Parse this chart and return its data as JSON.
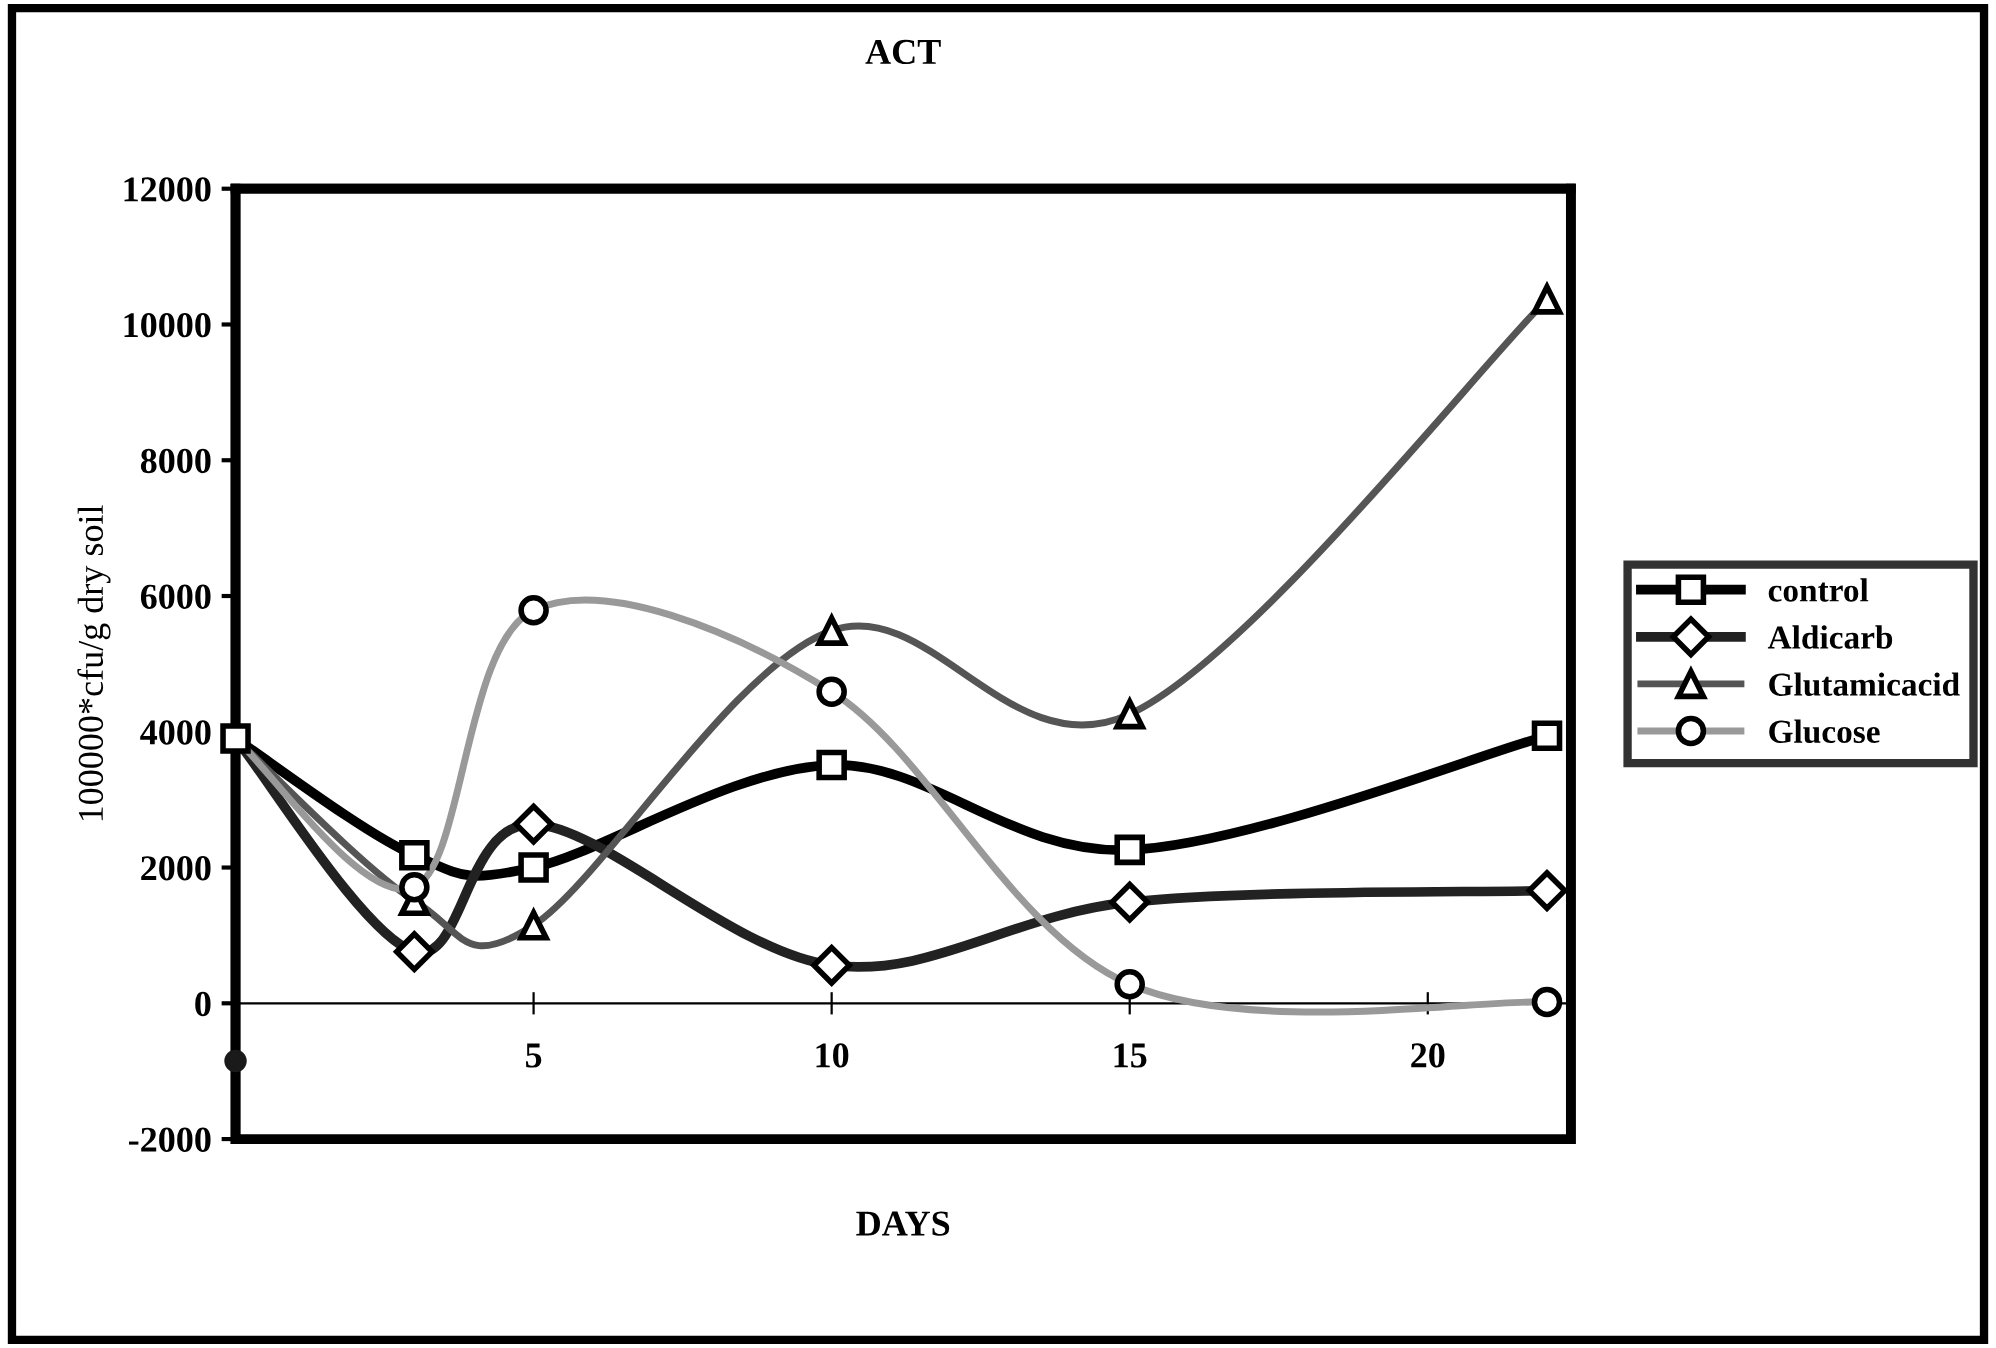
{
  "chart_data": {
    "type": "line",
    "title": "ACT",
    "xlabel": "DAYS",
    "ylabel": "100000*cfu/g dry soil",
    "xlim": [
      0,
      22.4
    ],
    "xticks": [
      5,
      10,
      15,
      20
    ],
    "ylim": [
      -2000,
      12000
    ],
    "yticks": [
      -2000,
      0,
      2000,
      4000,
      6000,
      8000,
      10000,
      12000
    ],
    "x": [
      0,
      3,
      5,
      10,
      15,
      22
    ],
    "legend": "right",
    "grid": false,
    "series": [
      {
        "name": "control",
        "color": "#000000",
        "marker": "square",
        "values": [
          3900,
          2180,
          2000,
          3510,
          2260,
          3940
        ]
      },
      {
        "name": "Aldicarb",
        "color": "#222222",
        "marker": "diamond",
        "values": [
          3900,
          760,
          2640,
          560,
          1490,
          1660
        ]
      },
      {
        "name": "Glutamicacid",
        "color": "#555555",
        "marker": "triangle",
        "values": [
          3900,
          1510,
          1150,
          5490,
          4260,
          10370
        ]
      },
      {
        "name": "Glucose",
        "color": "#999999",
        "marker": "circle",
        "values": [
          3900,
          1710,
          5790,
          4590,
          280,
          20
        ]
      },
      {
        "type": "scatter",
        "color": "#1a1a1a",
        "marker": "circle",
        "x": [
          0
        ],
        "values": [
          -850
        ]
      }
    ]
  }
}
